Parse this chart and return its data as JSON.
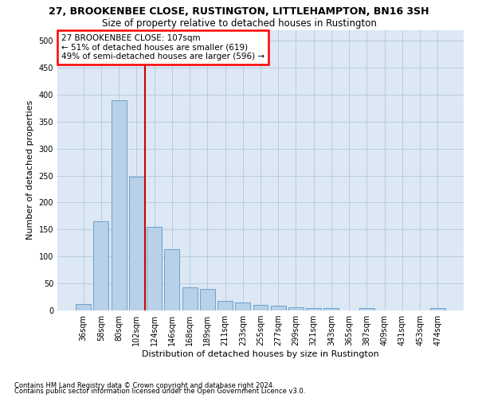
{
  "title_line1": "27, BROOKENBEE CLOSE, RUSTINGTON, LITTLEHAMPTON, BN16 3SH",
  "title_line2": "Size of property relative to detached houses in Rustington",
  "xlabel": "Distribution of detached houses by size in Rustington",
  "ylabel": "Number of detached properties",
  "footnote1": "Contains HM Land Registry data © Crown copyright and database right 2024.",
  "footnote2": "Contains public sector information licensed under the Open Government Licence v3.0.",
  "annotation_line1": "27 BROOKENBEE CLOSE: 107sqm",
  "annotation_line2": "← 51% of detached houses are smaller (619)",
  "annotation_line3": "49% of semi-detached houses are larger (596) →",
  "bar_color": "#b8d0e8",
  "bar_edge_color": "#5a9ac8",
  "vline_color": "#cc0000",
  "categories": [
    "36sqm",
    "58sqm",
    "80sqm",
    "102sqm",
    "124sqm",
    "146sqm",
    "168sqm",
    "189sqm",
    "211sqm",
    "233sqm",
    "255sqm",
    "277sqm",
    "299sqm",
    "321sqm",
    "343sqm",
    "365sqm",
    "387sqm",
    "409sqm",
    "431sqm",
    "453sqm",
    "474sqm"
  ],
  "values": [
    12,
    165,
    390,
    248,
    155,
    113,
    43,
    40,
    18,
    15,
    10,
    9,
    6,
    5,
    4,
    0,
    5,
    0,
    0,
    0,
    5
  ],
  "ylim": [
    0,
    520
  ],
  "yticks": [
    0,
    50,
    100,
    150,
    200,
    250,
    300,
    350,
    400,
    450,
    500
  ],
  "bg_axes": "#dce8f4",
  "grid_color": "#b8cce0",
  "title1_fontsize": 9,
  "title2_fontsize": 8.5,
  "xlabel_fontsize": 8,
  "ylabel_fontsize": 8,
  "footnote_fontsize": 6,
  "tick_fontsize": 7,
  "annot_fontsize": 7.5,
  "vline_index": 3.5
}
